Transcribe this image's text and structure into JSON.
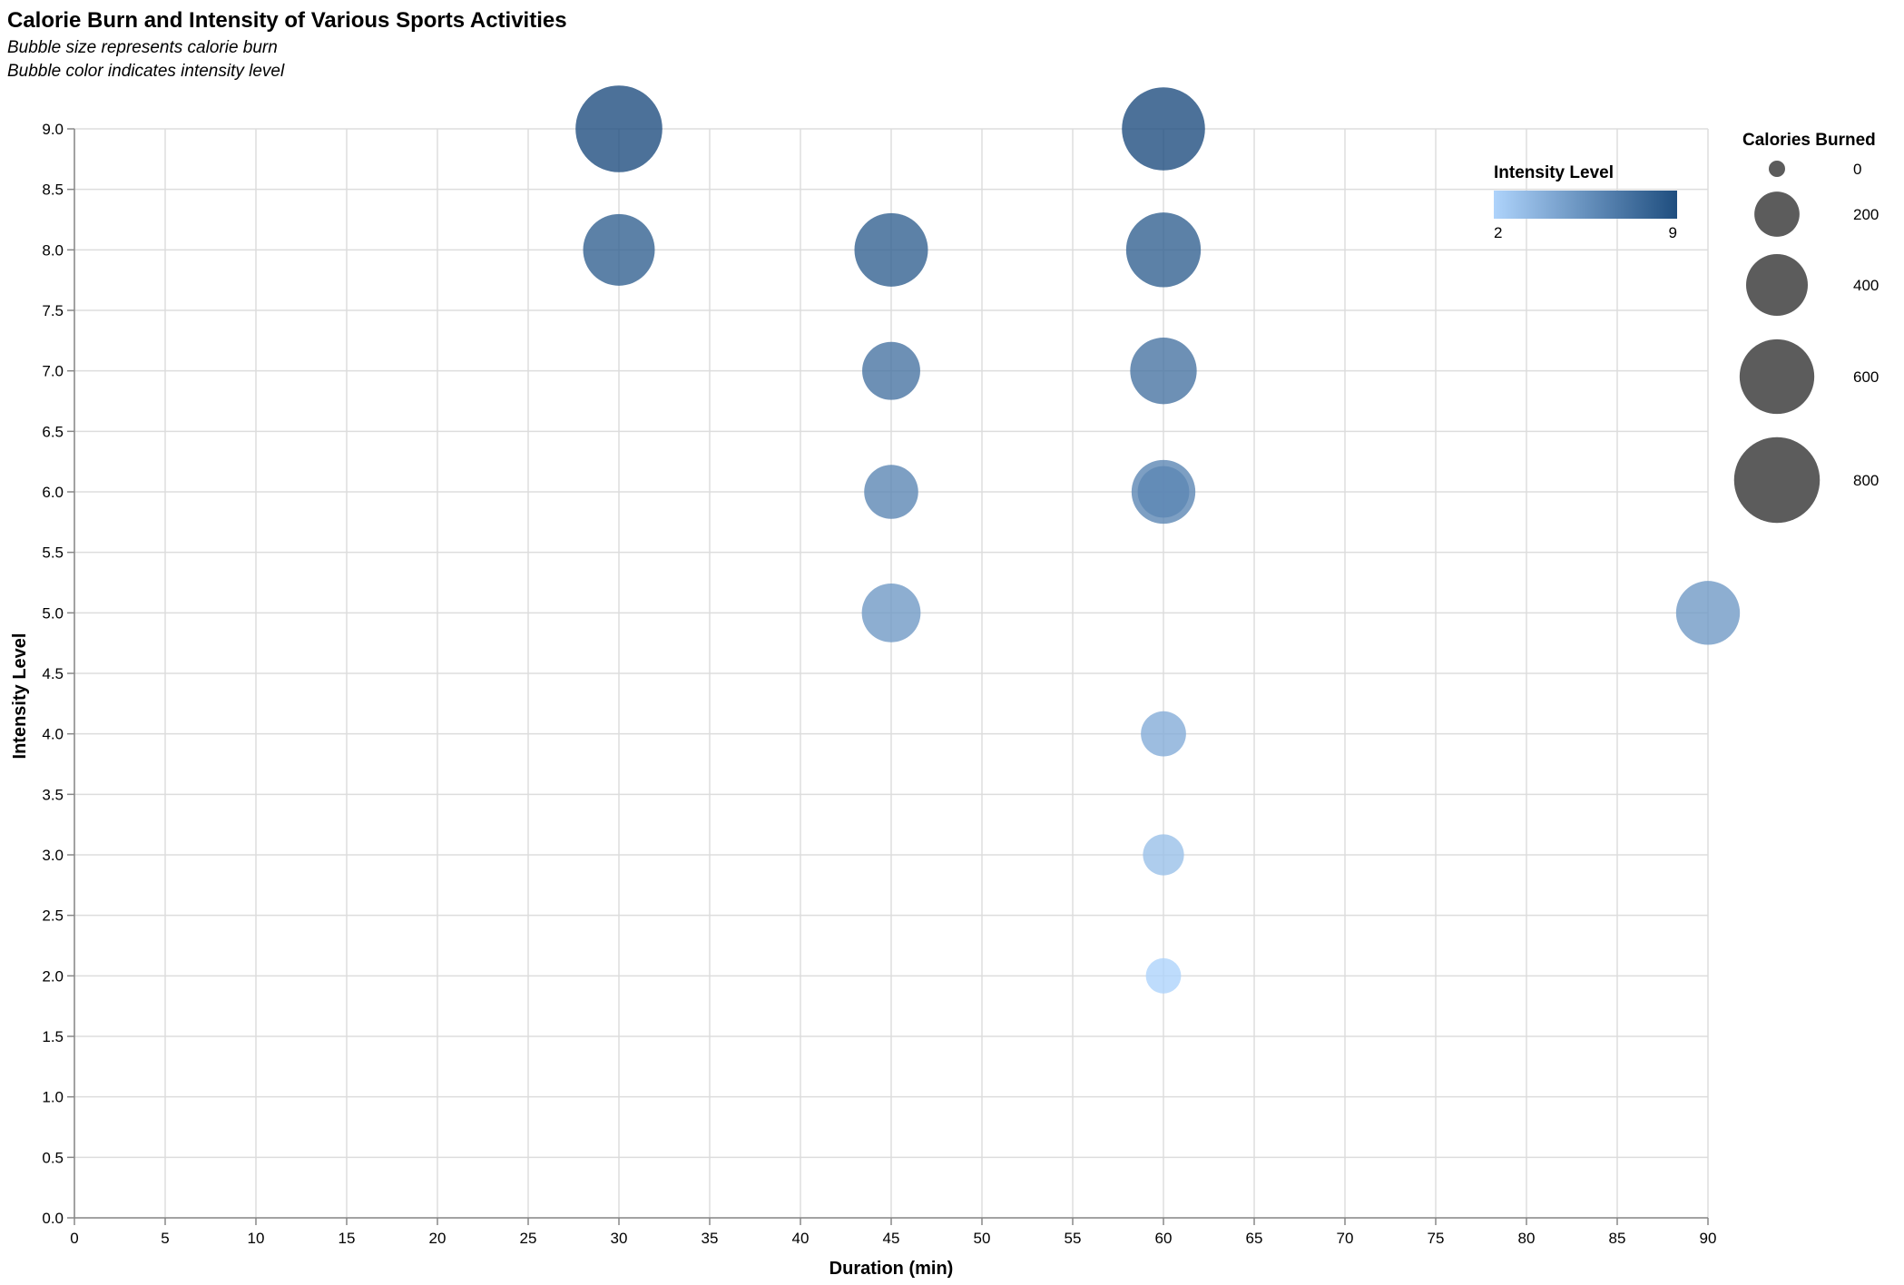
{
  "chart_data": {
    "type": "scatter",
    "title": "Calorie Burn and Intensity of Various Sports Activities",
    "subtitle": [
      "Bubble size represents calorie burn",
      "Bubble color indicates intensity level"
    ],
    "xlabel": "Duration (min)",
    "ylabel": "Intensity Level",
    "xlim": [
      0,
      90
    ],
    "ylim": [
      0,
      9
    ],
    "x_ticks": [
      "0",
      "5",
      "10",
      "15",
      "20",
      "25",
      "30",
      "35",
      "40",
      "45",
      "50",
      "55",
      "60",
      "65",
      "70",
      "75",
      "80",
      "85",
      "90"
    ],
    "y_ticks": [
      "0.0",
      "0.5",
      "1.0",
      "1.5",
      "2.0",
      "2.5",
      "3.0",
      "3.5",
      "4.0",
      "4.5",
      "5.0",
      "5.5",
      "6.0",
      "6.5",
      "7.0",
      "7.5",
      "8.0",
      "8.5",
      "9.0"
    ],
    "grid": true,
    "points": [
      {
        "x": 30,
        "y": 9,
        "calories": 820
      },
      {
        "x": 60,
        "y": 9,
        "calories": 750
      },
      {
        "x": 30,
        "y": 8,
        "calories": 550
      },
      {
        "x": 45,
        "y": 8,
        "calories": 580
      },
      {
        "x": 60,
        "y": 8,
        "calories": 600
      },
      {
        "x": 45,
        "y": 7,
        "calories": 350
      },
      {
        "x": 60,
        "y": 7,
        "calories": 470
      },
      {
        "x": 60,
        "y": 6,
        "calories": 430
      },
      {
        "x": 45,
        "y": 6,
        "calories": 300
      },
      {
        "x": 60,
        "y": 6,
        "calories": 270
      },
      {
        "x": 45,
        "y": 5,
        "calories": 360
      },
      {
        "x": 90,
        "y": 5,
        "calories": 430
      },
      {
        "x": 60,
        "y": 4,
        "calories": 200
      },
      {
        "x": 60,
        "y": 3,
        "calories": 160
      },
      {
        "x": 60,
        "y": 2,
        "calories": 110
      }
    ],
    "size_legend": {
      "title": "Calories Burned",
      "values": [
        0,
        200,
        400,
        600,
        800
      ]
    },
    "color_legend": {
      "title": "Intensity Level",
      "min": 2,
      "max": 9,
      "color_low": "#aed3fb",
      "color_high": "#1f4e7f"
    },
    "legend_placement": "right"
  }
}
